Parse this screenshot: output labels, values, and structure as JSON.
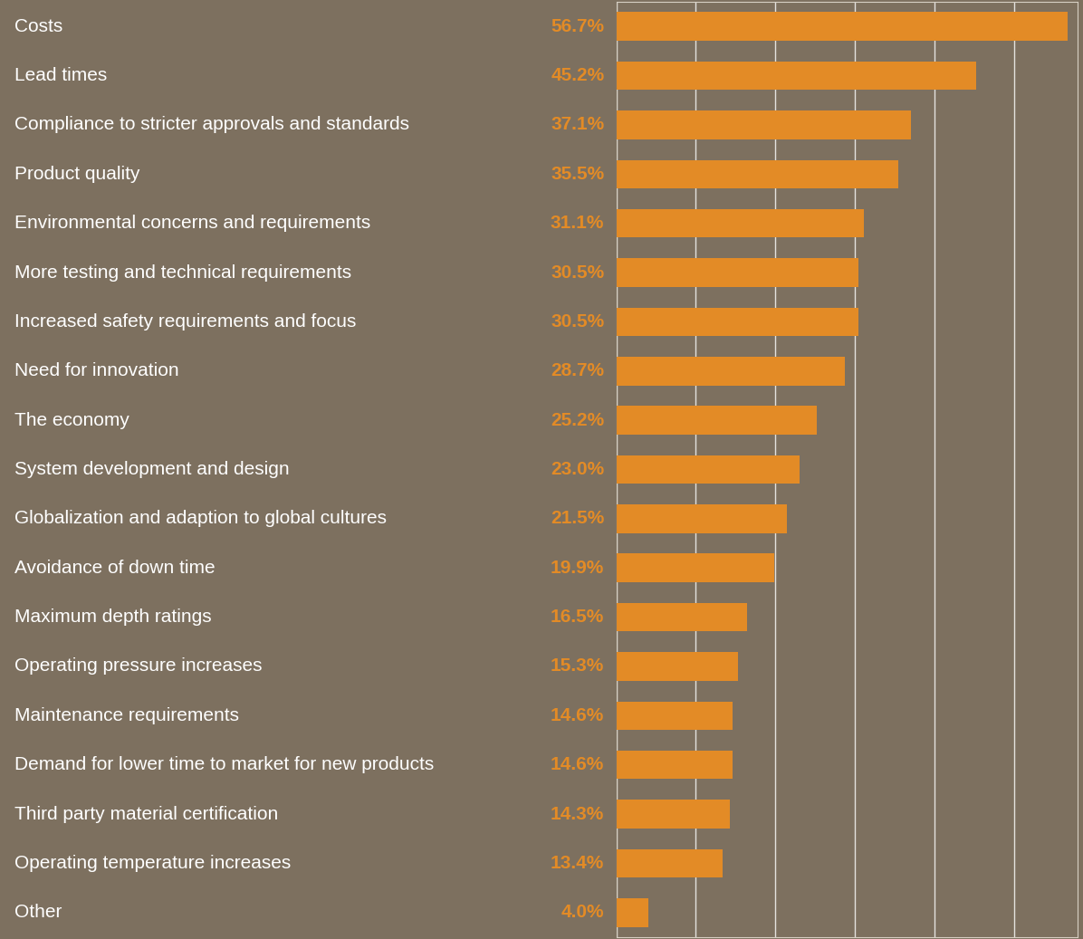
{
  "chart_data": {
    "type": "bar",
    "orientation": "horizontal",
    "categories": [
      "Costs",
      "Lead times",
      "Compliance to stricter approvals and standards",
      "Product quality",
      "Environmental concerns and requirements",
      "More testing and technical requirements",
      "Increased safety requirements and focus",
      "Need for innovation",
      "The economy",
      "System development and design",
      "Globalization and adaption to global cultures",
      "Avoidance of down time",
      "Maximum depth ratings",
      "Operating pressure increases",
      "Maintenance requirements",
      "Demand for lower time to market for new products",
      "Third party material certification",
      "Operating temperature increases",
      "Other"
    ],
    "values": [
      56.7,
      45.2,
      37.1,
      35.5,
      31.1,
      30.5,
      30.5,
      28.7,
      25.2,
      23.0,
      21.5,
      19.9,
      16.5,
      15.3,
      14.6,
      14.6,
      14.3,
      13.4,
      4.0
    ],
    "value_labels": [
      "56.7%",
      "45.2%",
      "37.1%",
      "35.5%",
      "31.1%",
      "30.5%",
      "30.5%",
      "28.7%",
      "25.2%",
      "23.0%",
      "21.5%",
      "19.9%",
      "16.5%",
      "15.3%",
      "14.6%",
      "14.6%",
      "14.3%",
      "13.4%",
      "4.0%"
    ],
    "color": "#e38b26",
    "xlim": [
      0,
      58
    ],
    "xticks": [
      0,
      10,
      20,
      30,
      40,
      50
    ],
    "grid": true,
    "data_labels": true,
    "tick_labels": false
  }
}
